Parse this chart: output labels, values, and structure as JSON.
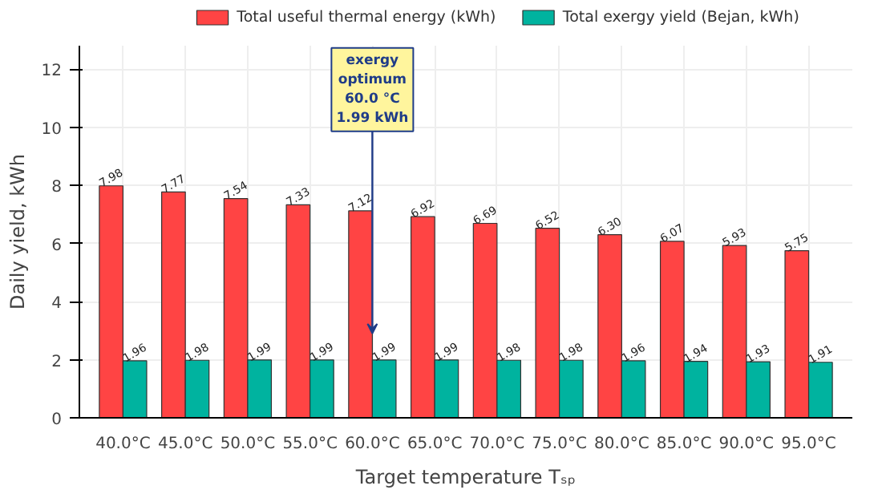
{
  "chart_data": {
    "type": "bar",
    "xlabel": "Target temperature Tₛₚ",
    "ylabel": "Daily yield, kWh",
    "categories": [
      "40.0°C",
      "45.0°C",
      "50.0°C",
      "55.0°C",
      "60.0°C",
      "65.0°C",
      "70.0°C",
      "75.0°C",
      "80.0°C",
      "85.0°C",
      "90.0°C",
      "95.0°C"
    ],
    "series": [
      {
        "name": "Total useful thermal energy (kWh)",
        "color": "#ff4444",
        "values": [
          7.98,
          7.77,
          7.54,
          7.33,
          7.12,
          6.92,
          6.69,
          6.52,
          6.3,
          6.07,
          5.93,
          5.75
        ],
        "value_labels": [
          "7.98",
          "7.77",
          "7.54",
          "7.33",
          "7.12",
          "6.92",
          "6.69",
          "6.52",
          "6.30",
          "6.07",
          "5.93",
          "5.75"
        ]
      },
      {
        "name": "Total exergy yield (Bejan, kWh)",
        "color": "#00b39f",
        "values": [
          1.96,
          1.98,
          1.99,
          1.99,
          1.99,
          1.99,
          1.98,
          1.98,
          1.96,
          1.94,
          1.93,
          1.91
        ],
        "value_labels": [
          "1.96",
          "1.98",
          "1.99",
          "1.99",
          "1.99",
          "1.99",
          "1.98",
          "1.98",
          "1.96",
          "1.94",
          "1.93",
          "1.91"
        ]
      }
    ],
    "ylim": [
      0,
      12.8
    ],
    "yticks": [
      0,
      2,
      4,
      6,
      8,
      10,
      12
    ],
    "grid": true,
    "legend": "top",
    "annotations": [
      {
        "text": "exergy\noptimum\n60.0 °C\n1.99 kWh",
        "x": "60.0°C",
        "y": 2.9
      }
    ]
  }
}
